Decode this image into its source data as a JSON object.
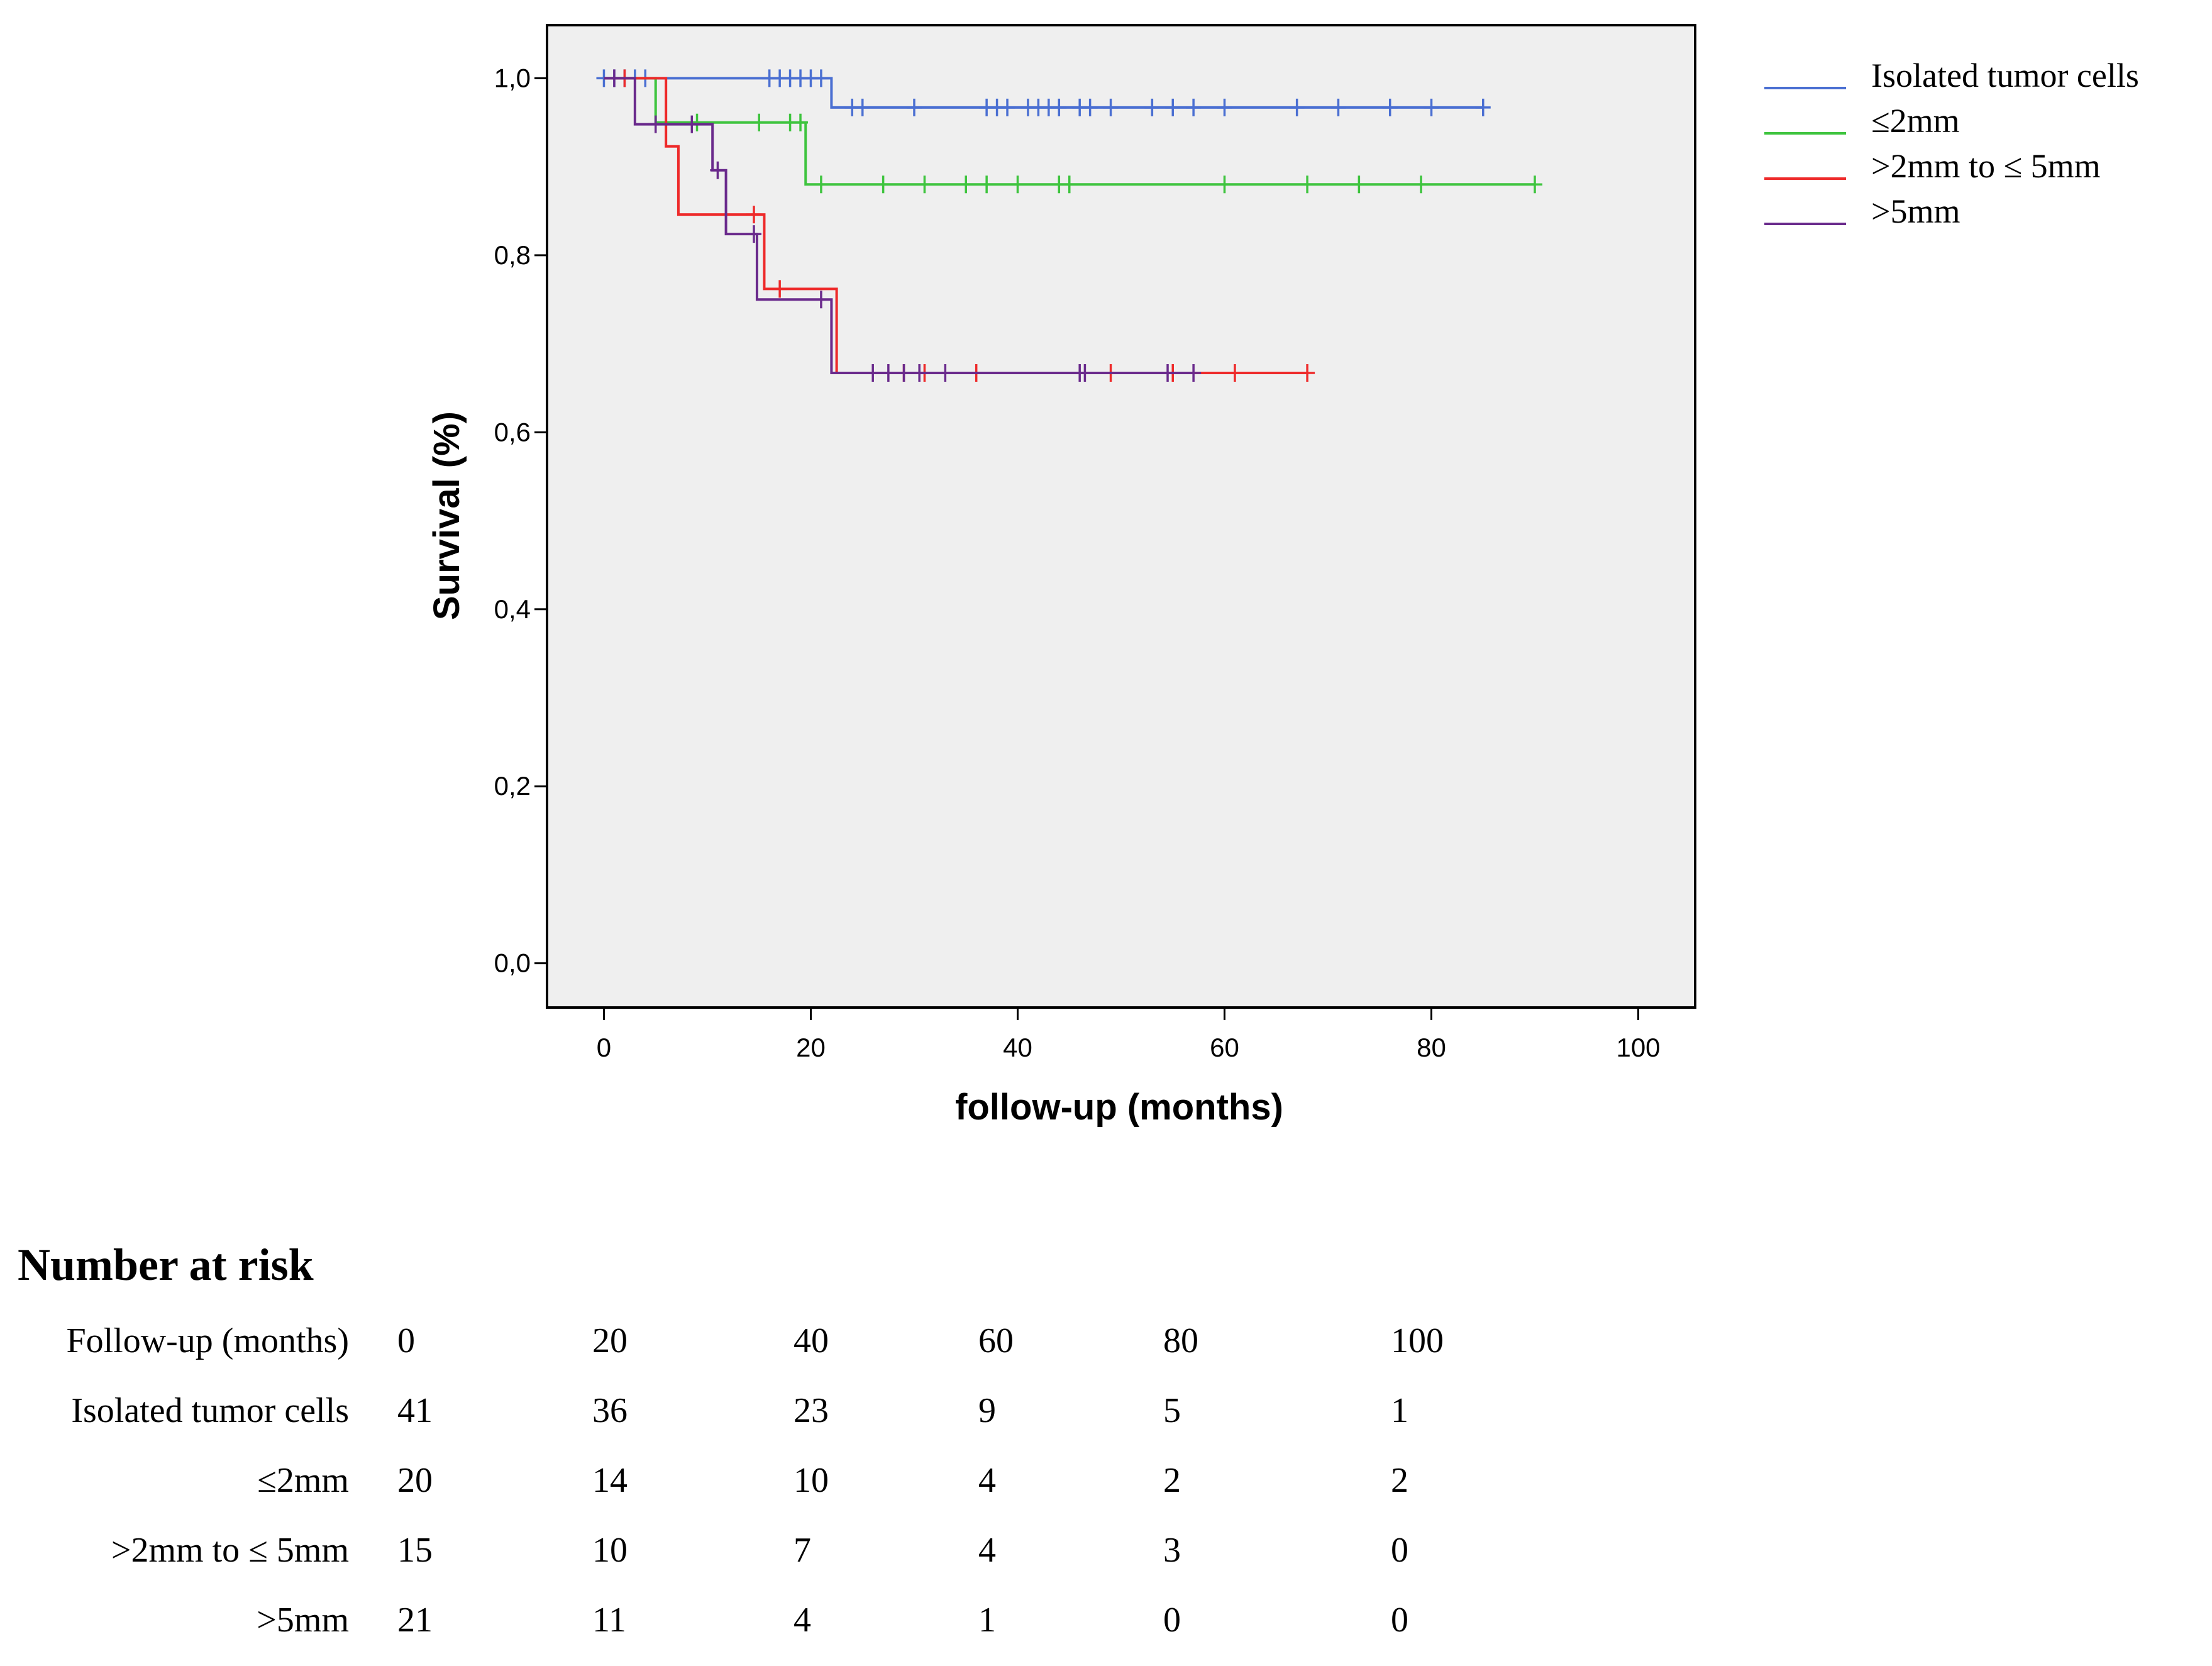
{
  "chart_data": {
    "type": "line",
    "subtype": "kaplan-meier",
    "xlabel": "follow-up (months)",
    "ylabel": "Survival (%)",
    "xlim": [
      -5.5,
      105.5
    ],
    "ylim": [
      -0.05,
      1.06
    ],
    "xticks": [
      0,
      20,
      40,
      60,
      80,
      100
    ],
    "xtick_labels": [
      "0",
      "20",
      "40",
      "60",
      "80",
      "100"
    ],
    "yticks": [
      0.0,
      0.2,
      0.4,
      0.6,
      0.8,
      1.0
    ],
    "ytick_labels": [
      "0,0",
      "0,2",
      "0,4",
      "0,6",
      "0,8",
      "1,0"
    ],
    "background": "#efefef",
    "legend_position": "top-right, outside plot",
    "series": [
      {
        "name": "Isolated tumor cells",
        "color": "#4a6fd2",
        "steps": [
          [
            0,
            1.0
          ],
          [
            22,
            0.967
          ],
          [
            85,
            0.967
          ]
        ],
        "censored": [
          [
            0,
            1.0
          ],
          [
            1,
            1.0
          ],
          [
            2,
            1.0
          ],
          [
            3,
            1.0
          ],
          [
            4,
            1.0
          ],
          [
            16,
            1.0
          ],
          [
            17,
            1.0
          ],
          [
            18,
            1.0
          ],
          [
            19,
            1.0
          ],
          [
            20,
            1.0
          ],
          [
            21,
            1.0
          ],
          [
            24,
            0.967
          ],
          [
            25,
            0.967
          ],
          [
            30,
            0.967
          ],
          [
            37,
            0.967
          ],
          [
            38,
            0.967
          ],
          [
            39,
            0.967
          ],
          [
            41,
            0.967
          ],
          [
            42,
            0.967
          ],
          [
            43,
            0.967
          ],
          [
            44,
            0.967
          ],
          [
            46,
            0.967
          ],
          [
            47,
            0.967
          ],
          [
            49,
            0.967
          ],
          [
            53,
            0.967
          ],
          [
            55,
            0.967
          ],
          [
            57,
            0.967
          ],
          [
            60,
            0.967
          ],
          [
            67,
            0.967
          ],
          [
            71,
            0.967
          ],
          [
            76,
            0.967
          ],
          [
            80,
            0.967
          ],
          [
            85,
            0.967
          ]
        ]
      },
      {
        "name": "≤2mm",
        "color": "#3ec43e",
        "steps": [
          [
            0,
            1.0
          ],
          [
            5,
            0.95
          ],
          [
            19.5,
            0.88
          ],
          [
            90,
            0.88
          ]
        ],
        "censored": [
          [
            9,
            0.95
          ],
          [
            15,
            0.95
          ],
          [
            18,
            0.95
          ],
          [
            19,
            0.95
          ],
          [
            21,
            0.88
          ],
          [
            27,
            0.88
          ],
          [
            31,
            0.88
          ],
          [
            35,
            0.88
          ],
          [
            37,
            0.88
          ],
          [
            40,
            0.88
          ],
          [
            44,
            0.88
          ],
          [
            45,
            0.88
          ],
          [
            60,
            0.88
          ],
          [
            68,
            0.88
          ],
          [
            73,
            0.88
          ],
          [
            79,
            0.88
          ],
          [
            90,
            0.88
          ]
        ]
      },
      {
        "name": ">2mm to ≤ 5mm",
        "color": "#ee2a2a",
        "steps": [
          [
            0,
            1.0
          ],
          [
            6,
            0.923
          ],
          [
            7.2,
            0.846
          ],
          [
            15.5,
            0.762
          ],
          [
            22.5,
            0.667
          ],
          [
            68,
            0.667
          ]
        ],
        "censored": [
          [
            2,
            1.0
          ],
          [
            14.5,
            0.846
          ],
          [
            17,
            0.762
          ],
          [
            29,
            0.667
          ],
          [
            31,
            0.667
          ],
          [
            36,
            0.667
          ],
          [
            49,
            0.667
          ],
          [
            55,
            0.667
          ],
          [
            61,
            0.667
          ],
          [
            68,
            0.667
          ]
        ]
      },
      {
        "name": ">5mm",
        "color": "#6a2a8c",
        "steps": [
          [
            0,
            1.0
          ],
          [
            3,
            0.948
          ],
          [
            10.5,
            0.896
          ],
          [
            11.8,
            0.824
          ],
          [
            14.8,
            0.75
          ],
          [
            22,
            0.667
          ],
          [
            57,
            0.667
          ]
        ],
        "censored": [
          [
            1,
            1.0
          ],
          [
            5,
            0.948
          ],
          [
            8.5,
            0.948
          ],
          [
            11,
            0.896
          ],
          [
            14.5,
            0.824
          ],
          [
            21,
            0.75
          ],
          [
            26,
            0.667
          ],
          [
            27.5,
            0.667
          ],
          [
            29,
            0.667
          ],
          [
            30.5,
            0.667
          ],
          [
            33,
            0.667
          ],
          [
            46,
            0.667
          ],
          [
            46.5,
            0.667
          ],
          [
            54.5,
            0.667
          ],
          [
            57,
            0.667
          ]
        ]
      }
    ]
  },
  "risk_table": {
    "title": "Number at risk",
    "header_label": "Follow-up (months)",
    "timepoints": [
      "0",
      "20",
      "40",
      "60",
      "80",
      "100"
    ],
    "rows": [
      {
        "label": "Isolated tumor cells",
        "values": [
          "41",
          "36",
          "23",
          "9",
          "5",
          "1"
        ]
      },
      {
        "label": "≤2mm",
        "values": [
          "20",
          "14",
          "10",
          "4",
          "2",
          "2"
        ]
      },
      {
        "label": ">2mm to ≤ 5mm",
        "values": [
          "15",
          "10",
          "7",
          "4",
          "3",
          "0"
        ]
      },
      {
        "label": ">5mm",
        "values": [
          "21",
          "11",
          "4",
          "1",
          "0",
          "0"
        ]
      }
    ]
  }
}
